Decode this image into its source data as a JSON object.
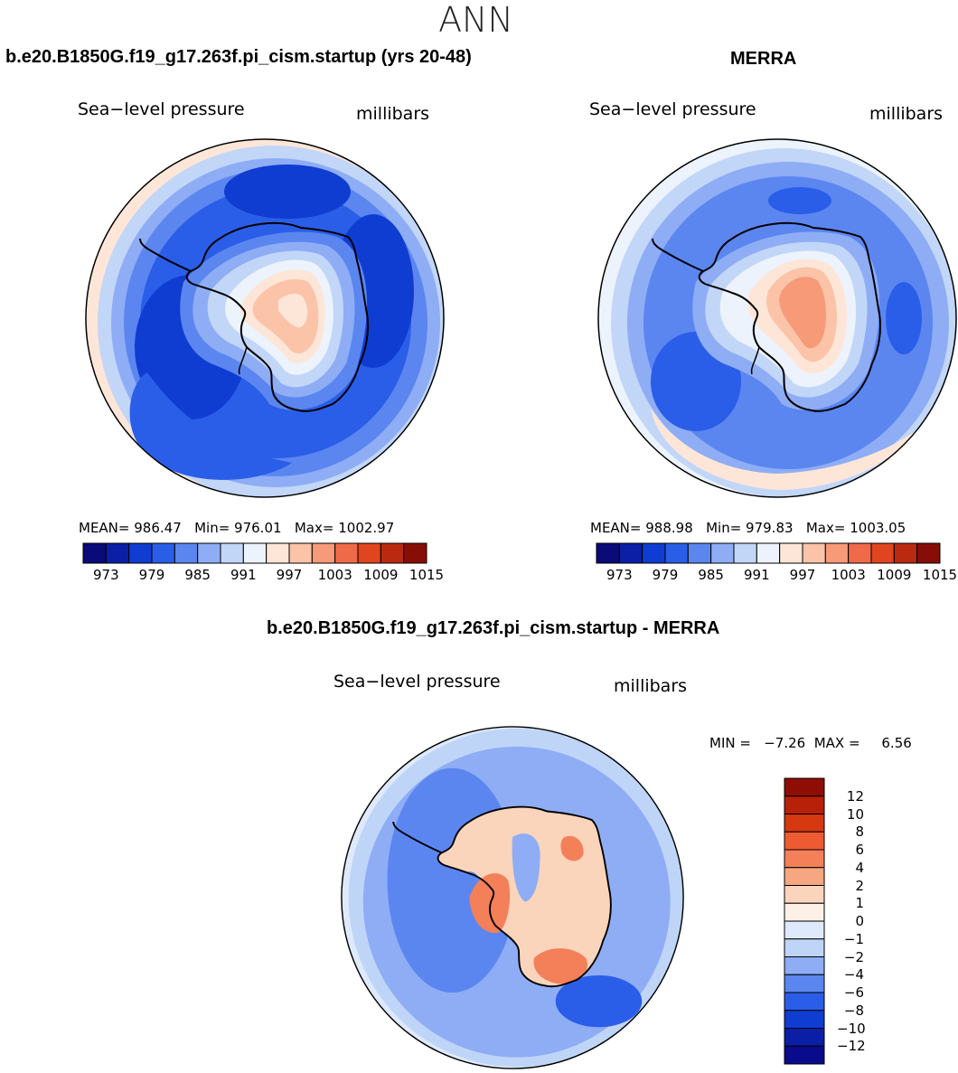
{
  "season": "ANN",
  "colors": {
    "abs_scale": [
      "#0a0a78",
      "#0a1ea6",
      "#0f3dd2",
      "#2a5ee8",
      "#5b86f0",
      "#8eadf5",
      "#c2d6f8",
      "#ecf3fc",
      "#fde6d8",
      "#fbc3a8",
      "#f69a78",
      "#ef6a48",
      "#e0451f",
      "#b92a10",
      "#870e06"
    ],
    "diff_scale": [
      "#0a0a8c",
      "#0a1ea6",
      "#0f3dd2",
      "#2a5ee8",
      "#5b86f0",
      "#8eadf5",
      "#bfd5f8",
      "#deeafb",
      "#fdf0e6",
      "#fbd4bc",
      "#f6a680",
      "#f38058",
      "#ee5a32",
      "#d6380f",
      "#b62108",
      "#8e0e05"
    ],
    "coast": "#000000"
  },
  "panels": {
    "left": {
      "title": "b.e20.B1850G.f19_g17.263f.pi_cism.startup (yrs 20-48)",
      "variable": "Sea−level pressure",
      "units": "millibars",
      "stats": {
        "mean_label": "MEAN=",
        "mean": "986.47",
        "min_label": "Min=",
        "min": "976.01",
        "max_label": "Max=",
        "max": "1002.97"
      },
      "ticks": [
        "973",
        "979",
        "985",
        "991",
        "997",
        "1003",
        "1009",
        "1015"
      ]
    },
    "right": {
      "title": "MERRA",
      "variable": "Sea−level pressure",
      "units": "millibars",
      "stats": {
        "mean_label": "MEAN=",
        "mean": "988.98",
        "min_label": "Min=",
        "min": "979.83",
        "max_label": "Max=",
        "max": "1003.05"
      },
      "ticks": [
        "973",
        "979",
        "985",
        "991",
        "997",
        "1003",
        "1009",
        "1015"
      ]
    },
    "diff": {
      "title": "b.e20.B1850G.f19_g17.263f.pi_cism.startup - MERRA",
      "variable": "Sea−level pressure",
      "units": "millibars",
      "minmax": "MIN =   −7.26  MAX =     6.56",
      "ticks": [
        "12",
        "10",
        "8",
        "6",
        "4",
        "2",
        "1",
        "0",
        "−1",
        "−2",
        "−4",
        "−6",
        "−8",
        "−10",
        "−12"
      ]
    }
  }
}
